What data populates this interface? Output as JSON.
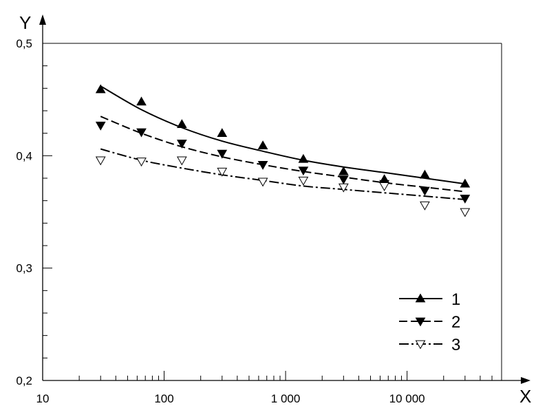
{
  "chart_data": {
    "type": "line",
    "title": "",
    "xlabel": "X",
    "ylabel": "Y",
    "x_scale": "log",
    "xlim": [
      10,
      60000
    ],
    "ylim": [
      0.2,
      0.5
    ],
    "x_ticks": [
      {
        "value": 10,
        "label": "10"
      },
      {
        "value": 100,
        "label": "100"
      },
      {
        "value": 1000,
        "label": "1 000"
      },
      {
        "value": 10000,
        "label": "10 000"
      }
    ],
    "y_ticks": [
      {
        "value": 0.2,
        "label": "0,2"
      },
      {
        "value": 0.3,
        "label": "0,3"
      },
      {
        "value": 0.4,
        "label": "0,4"
      },
      {
        "value": 0.5,
        "label": "0,5"
      }
    ],
    "legend_position": "lower-right",
    "series": [
      {
        "name": "1",
        "marker": "triangle-up-filled",
        "line_style": "solid",
        "points": [
          [
            30,
            0.459
          ],
          [
            65,
            0.448
          ],
          [
            140,
            0.428
          ],
          [
            300,
            0.42
          ],
          [
            650,
            0.409
          ],
          [
            1400,
            0.397
          ],
          [
            3000,
            0.386
          ],
          [
            6500,
            0.379
          ],
          [
            14000,
            0.383
          ],
          [
            30000,
            0.375
          ]
        ],
        "fit": [
          [
            30,
            0.462
          ],
          [
            65,
            0.441
          ],
          [
            140,
            0.425
          ],
          [
            300,
            0.413
          ],
          [
            650,
            0.404
          ],
          [
            1400,
            0.396
          ],
          [
            3000,
            0.39
          ],
          [
            6500,
            0.385
          ],
          [
            14000,
            0.38
          ],
          [
            30000,
            0.375
          ]
        ]
      },
      {
        "name": "2",
        "marker": "triangle-down-filled",
        "line_style": "dashed",
        "points": [
          [
            30,
            0.427
          ],
          [
            65,
            0.421
          ],
          [
            140,
            0.411
          ],
          [
            300,
            0.402
          ],
          [
            650,
            0.392
          ],
          [
            1400,
            0.387
          ],
          [
            3000,
            0.379
          ],
          [
            6500,
            0.375
          ],
          [
            14000,
            0.369
          ],
          [
            30000,
            0.362
          ]
        ],
        "fit": [
          [
            30,
            0.435
          ],
          [
            65,
            0.42
          ],
          [
            140,
            0.408
          ],
          [
            300,
            0.399
          ],
          [
            650,
            0.392
          ],
          [
            1400,
            0.386
          ],
          [
            3000,
            0.381
          ],
          [
            6500,
            0.376
          ],
          [
            14000,
            0.372
          ],
          [
            30000,
            0.368
          ]
        ]
      },
      {
        "name": "3",
        "marker": "triangle-down-open",
        "line_style": "dashdot",
        "points": [
          [
            30,
            0.396
          ],
          [
            65,
            0.395
          ],
          [
            140,
            0.396
          ],
          [
            300,
            0.386
          ],
          [
            650,
            0.377
          ],
          [
            1400,
            0.378
          ],
          [
            3000,
            0.372
          ],
          [
            6500,
            0.373
          ],
          [
            14000,
            0.356
          ],
          [
            30000,
            0.35
          ]
        ],
        "fit": [
          [
            30,
            0.406
          ],
          [
            65,
            0.396
          ],
          [
            140,
            0.389
          ],
          [
            300,
            0.383
          ],
          [
            650,
            0.378
          ],
          [
            1400,
            0.373
          ],
          [
            3000,
            0.37
          ],
          [
            6500,
            0.367
          ],
          [
            14000,
            0.364
          ],
          [
            30000,
            0.361
          ]
        ]
      }
    ]
  }
}
